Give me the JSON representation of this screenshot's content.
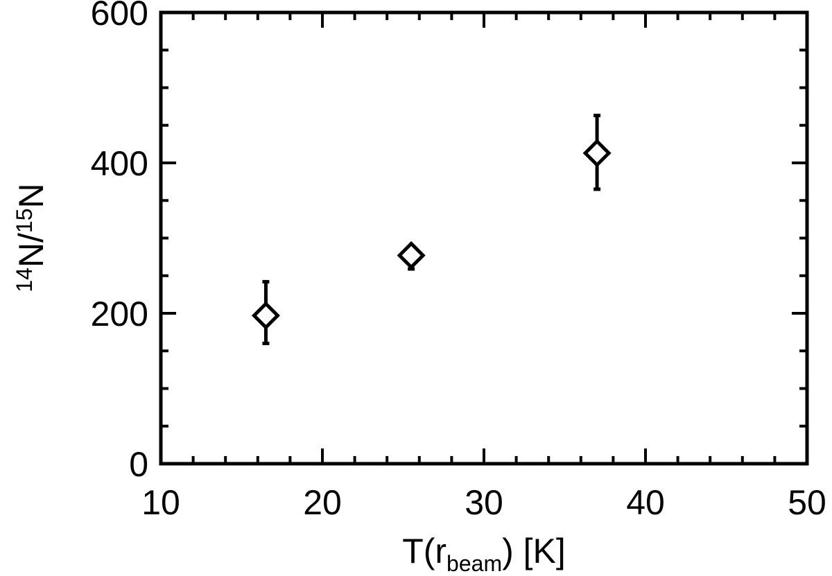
{
  "chart_data": {
    "type": "scatter",
    "xlabel": {
      "main": "T(r",
      "sub": "beam",
      "tail": ") [K]"
    },
    "ylabel": {
      "sup1": "14",
      "main1": "N/",
      "sup2": "15",
      "main2": "N"
    },
    "xlim": [
      10,
      50
    ],
    "ylim": [
      0,
      600
    ],
    "x_ticks": [
      "10",
      "20",
      "30",
      "40",
      "50"
    ],
    "y_ticks": [
      "0",
      "200",
      "400",
      "600"
    ],
    "marker": "open-diamond",
    "points": [
      {
        "x": 16.5,
        "y": 197,
        "err_low": 37,
        "err_high": 45
      },
      {
        "x": 25.5,
        "y": 277,
        "err_low": 18,
        "err_high": 12
      },
      {
        "x": 37.0,
        "y": 413,
        "err_low": 48,
        "err_high": 50
      }
    ]
  }
}
